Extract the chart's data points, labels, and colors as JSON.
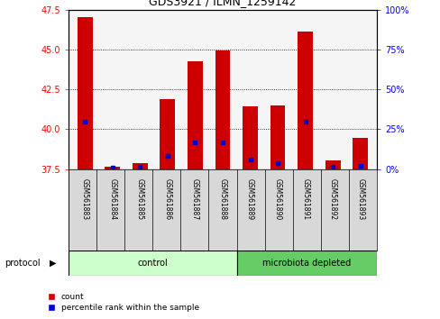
{
  "title": "GDS3921 / ILMN_1259142",
  "samples": [
    "GSM561883",
    "GSM561884",
    "GSM561885",
    "GSM561886",
    "GSM561887",
    "GSM561888",
    "GSM561889",
    "GSM561890",
    "GSM561891",
    "GSM561892",
    "GSM561893"
  ],
  "count_values": [
    47.0,
    37.62,
    37.87,
    41.87,
    44.28,
    44.93,
    41.42,
    41.47,
    46.1,
    38.02,
    39.43
  ],
  "percentile_values": [
    40.5,
    37.6,
    37.63,
    38.3,
    39.2,
    39.2,
    38.1,
    37.88,
    40.45,
    37.62,
    37.72
  ],
  "percentile_pct": [
    25,
    1,
    1,
    7,
    18,
    18,
    7,
    3,
    26,
    1,
    2
  ],
  "ymin": 37.5,
  "ymax": 47.5,
  "yticks": [
    37.5,
    40.0,
    42.5,
    45.0,
    47.5
  ],
  "y2ticks": [
    0,
    25,
    50,
    75,
    100
  ],
  "bar_color": "#cc0000",
  "percentile_color": "#0000cc",
  "plot_bg_color": "#f5f5f5",
  "control_color": "#ccffcc",
  "microbiota_color": "#66cc66",
  "control_label": "control",
  "microbiota_label": "microbiota depleted",
  "protocol_label": "protocol",
  "legend_count": "count",
  "legend_percentile": "percentile rank within the sample",
  "n_control": 6,
  "n_micro": 5
}
